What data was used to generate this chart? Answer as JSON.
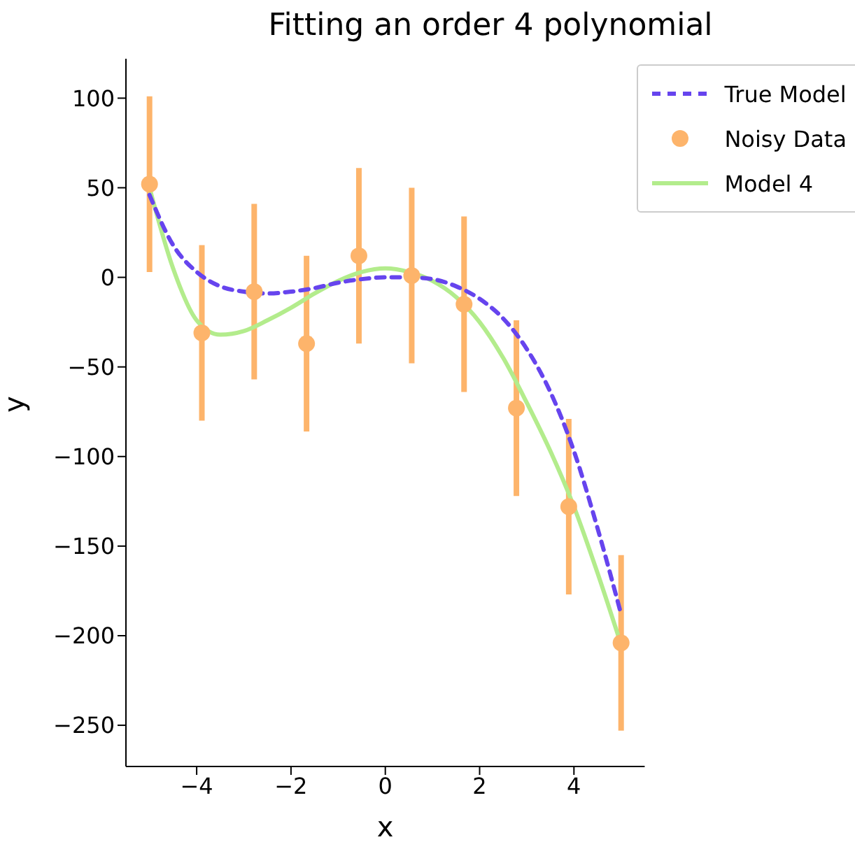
{
  "chart_data": {
    "type": "line",
    "title": "Fitting an order 4 polynomial",
    "xlabel": "x",
    "ylabel": "y",
    "xlim": [
      -5.5,
      5.5
    ],
    "xticks": [
      {
        "value": -4,
        "label": "−4"
      },
      {
        "value": -2,
        "label": "−2"
      },
      0,
      2,
      4
    ],
    "ylim": [
      -273,
      122
    ],
    "yticks": [
      {
        "value": -250,
        "label": "−250"
      },
      {
        "value": -200,
        "label": "−200"
      },
      {
        "value": -150,
        "label": "−150"
      },
      {
        "value": -100,
        "label": "−100"
      },
      {
        "value": -50,
        "label": "−50"
      },
      0,
      50,
      100
    ],
    "legend": "top right",
    "grid": false,
    "series": [
      {
        "name": "True Model",
        "color": "#6644ee",
        "line_style": "dashed",
        "marker": "none",
        "x": [
          -5,
          -4.5,
          -4,
          -3.5,
          -3,
          -2.5,
          -2,
          -1.5,
          -1,
          -0.5,
          0,
          0.5,
          1,
          1.5,
          2,
          2.5,
          3,
          3.5,
          4,
          4.5,
          5
        ],
        "values": [
          46,
          18,
          3,
          -5,
          -8,
          -9,
          -8,
          -6,
          -3,
          -1,
          0,
          0,
          -1,
          -5,
          -12,
          -23,
          -40,
          -64,
          -97,
          -140,
          -188
        ]
      },
      {
        "name": "Noisy Data",
        "type": "scatter",
        "color": "#fdb46b",
        "marker": "circle",
        "x": [
          -5,
          -3.89,
          -2.78,
          -1.67,
          -0.56,
          0.56,
          1.67,
          2.78,
          3.89,
          5
        ],
        "values": [
          52,
          -31,
          -8,
          -37,
          12,
          1,
          -15,
          -73,
          -128,
          -204
        ],
        "errors": [
          49,
          49,
          49,
          49,
          49,
          49,
          49,
          49,
          49,
          49
        ]
      },
      {
        "name": "Model 4",
        "color": "#b3ec8c",
        "line_style": "solid",
        "marker": "none",
        "x": [
          -5,
          -4.5,
          -4,
          -3.5,
          -3,
          -2.5,
          -2,
          -1.5,
          -1,
          -0.5,
          0,
          0.5,
          1,
          1.5,
          2,
          2.5,
          3,
          3.5,
          4,
          4.5,
          5
        ],
        "values": [
          50,
          5,
          -24,
          -32,
          -30,
          -24,
          -17,
          -9,
          -2,
          3,
          5,
          3,
          -2,
          -11,
          -25,
          -45,
          -70,
          -97,
          -128,
          -165,
          -205
        ]
      }
    ]
  }
}
